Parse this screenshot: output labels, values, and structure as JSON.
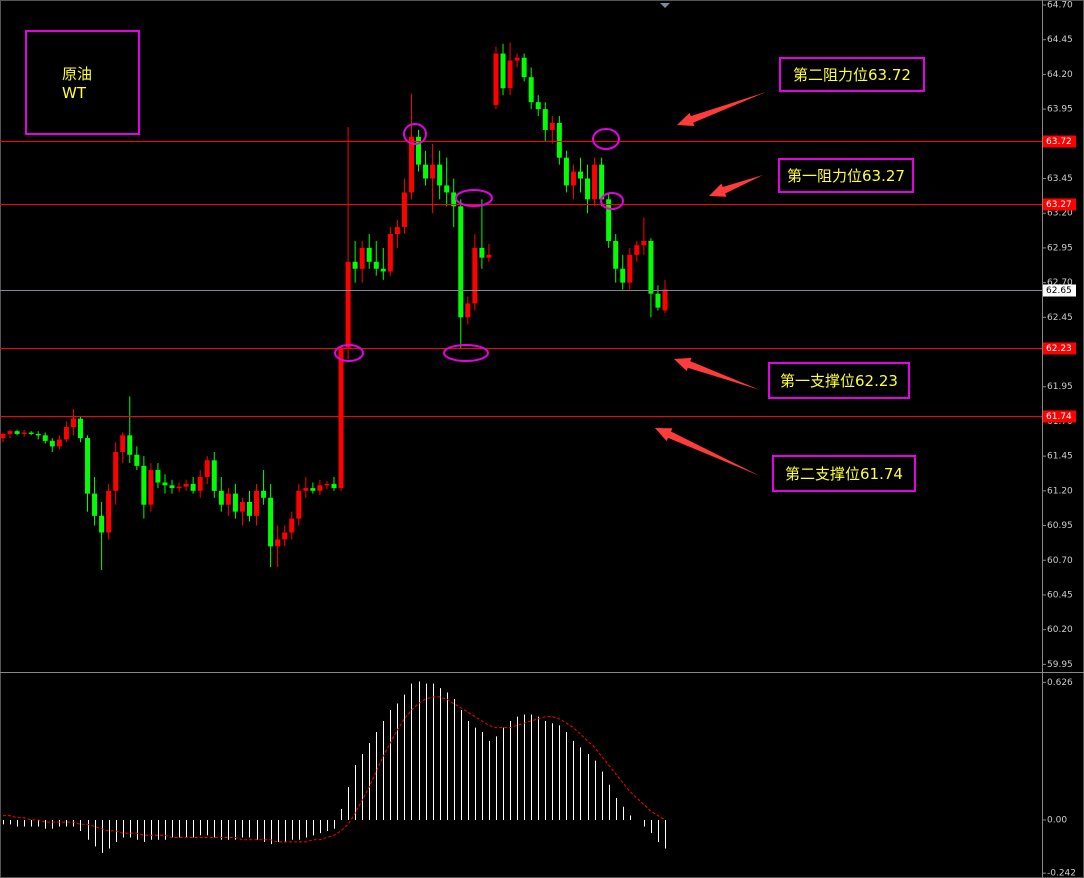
{
  "chart_data": [
    {
      "type": "candlestick",
      "annotations": [
        "原油",
        "WT",
        "第二阻力位63.72",
        "第一阻力位63.27",
        "第一支撑位62.23",
        "第二支撑位61.74"
      ],
      "up_color": "#ff0000",
      "down_color": "#00ff00",
      "ylim": [
        59.895,
        64.736
      ],
      "yticks": [
        {
          "value": 64.7,
          "label": "64.70"
        },
        64.45,
        {
          "value": 64.2,
          "label": "64.20"
        },
        63.95,
        63.45,
        {
          "value": 63.2,
          "label": "63.20"
        },
        62.95,
        {
          "value": 62.7,
          "label": "62.70"
        },
        62.45,
        61.95,
        {
          "value": 61.7,
          "label": "61.70"
        },
        61.45,
        {
          "value": 61.2,
          "label": "61.20"
        },
        60.95,
        {
          "value": 60.7,
          "label": "60.70"
        },
        60.45,
        {
          "value": 60.2,
          "label": "60.20"
        },
        59.95
      ],
      "levels": [
        {
          "value": 63.72,
          "color": "#ff0000"
        },
        {
          "value": 63.27,
          "color": "#ff0000"
        },
        {
          "value": 62.65,
          "color": "#ffffff"
        },
        {
          "value": 62.23,
          "color": "#ff0000"
        },
        {
          "value": 61.74,
          "color": "#ff0000"
        }
      ],
      "ohlc": [
        [
          61.58,
          61.62,
          61.55,
          61.61
        ],
        [
          61.61,
          61.64,
          61.58,
          61.63
        ],
        [
          61.63,
          61.64,
          61.6,
          61.61
        ],
        [
          61.61,
          61.64,
          61.59,
          61.62
        ],
        [
          61.62,
          61.63,
          61.6,
          61.61
        ],
        [
          61.61,
          61.63,
          61.57,
          61.6
        ],
        [
          61.6,
          61.62,
          61.54,
          61.56
        ],
        [
          61.56,
          61.58,
          61.48,
          61.52
        ],
        [
          61.52,
          61.6,
          61.5,
          61.57
        ],
        [
          61.57,
          61.7,
          61.55,
          61.66
        ],
        [
          61.66,
          61.79,
          61.6,
          61.72
        ],
        [
          61.72,
          61.74,
          61.55,
          61.58
        ],
        [
          61.58,
          61.6,
          61.05,
          61.18
        ],
        [
          61.18,
          61.3,
          60.95,
          61.02
        ],
        [
          61.02,
          61.12,
          60.63,
          60.9
        ],
        [
          60.9,
          61.25,
          60.85,
          61.2
        ],
        [
          61.2,
          61.55,
          61.1,
          61.48
        ],
        [
          61.48,
          61.62,
          61.4,
          61.6
        ],
        [
          61.6,
          61.88,
          61.4,
          61.46
        ],
        [
          61.46,
          61.52,
          61.35,
          61.38
        ],
        [
          61.38,
          61.45,
          61.0,
          61.1
        ],
        [
          61.1,
          61.4,
          61.05,
          61.35
        ],
        [
          61.35,
          61.4,
          61.22,
          61.26
        ],
        [
          61.26,
          61.32,
          61.18,
          61.24
        ],
        [
          61.24,
          61.28,
          61.18,
          61.22
        ],
        [
          61.22,
          61.26,
          61.19,
          61.23
        ],
        [
          61.23,
          61.28,
          61.2,
          61.25
        ],
        [
          61.25,
          61.3,
          61.18,
          61.2
        ],
        [
          61.2,
          61.35,
          61.15,
          61.3
        ],
        [
          61.3,
          61.45,
          61.25,
          61.42
        ],
        [
          61.42,
          61.48,
          61.15,
          61.2
        ],
        [
          61.2,
          61.3,
          61.05,
          61.1
        ],
        [
          61.1,
          61.22,
          61.02,
          61.18
        ],
        [
          61.18,
          61.25,
          61.0,
          61.05
        ],
        [
          61.05,
          61.15,
          60.95,
          61.12
        ],
        [
          61.12,
          61.2,
          60.98,
          61.02
        ],
        [
          61.02,
          61.25,
          60.95,
          61.2
        ],
        [
          61.2,
          61.35,
          61.1,
          61.15
        ],
        [
          61.15,
          61.25,
          60.65,
          60.8
        ],
        [
          60.8,
          60.95,
          60.65,
          60.85
        ],
        [
          60.85,
          60.95,
          60.8,
          60.9
        ],
        [
          60.9,
          61.05,
          60.85,
          61.0
        ],
        [
          61.0,
          61.25,
          60.95,
          61.2
        ],
        [
          61.2,
          61.3,
          61.15,
          61.22
        ],
        [
          61.22,
          61.26,
          61.18,
          61.2
        ],
        [
          61.2,
          61.28,
          61.17,
          61.24
        ],
        [
          61.24,
          61.27,
          61.21,
          61.25
        ],
        [
          61.25,
          61.3,
          61.2,
          61.22
        ],
        [
          61.22,
          62.25,
          61.2,
          62.23
        ],
        [
          62.23,
          63.82,
          62.15,
          62.85
        ],
        [
          62.85,
          63.0,
          62.7,
          62.8
        ],
        [
          62.8,
          63.0,
          62.7,
          62.95
        ],
        [
          62.95,
          63.05,
          62.8,
          62.85
        ],
        [
          62.85,
          63.0,
          62.75,
          62.8
        ],
        [
          62.8,
          62.95,
          62.72,
          62.78
        ],
        [
          62.78,
          63.1,
          62.75,
          63.05
        ],
        [
          63.05,
          63.15,
          62.95,
          63.1
        ],
        [
          63.1,
          63.45,
          63.05,
          63.35
        ],
        [
          63.35,
          64.06,
          63.3,
          63.75
        ],
        [
          63.75,
          63.8,
          63.5,
          63.55
        ],
        [
          63.55,
          63.65,
          63.4,
          63.45
        ],
        [
          63.45,
          63.7,
          63.2,
          63.55
        ],
        [
          63.55,
          63.65,
          63.3,
          63.4
        ],
        [
          63.4,
          63.6,
          63.25,
          63.35
        ],
        [
          63.35,
          63.45,
          63.1,
          63.25
        ],
        [
          63.25,
          63.3,
          62.23,
          62.45
        ],
        [
          62.45,
          62.6,
          62.4,
          62.55
        ],
        [
          62.55,
          63.05,
          62.5,
          62.95
        ],
        [
          62.95,
          63.3,
          62.8,
          62.88
        ],
        [
          62.88,
          62.98,
          62.85,
          62.9
        ],
        [
          63.98,
          64.4,
          63.95,
          64.35
        ],
        [
          64.35,
          64.42,
          64.05,
          64.1
        ],
        [
          64.1,
          64.43,
          64.05,
          64.3
        ],
        [
          64.3,
          64.35,
          64.25,
          64.32
        ],
        [
          64.32,
          64.35,
          64.15,
          64.18
        ],
        [
          64.18,
          64.25,
          63.95,
          64.0
        ],
        [
          64.0,
          64.05,
          63.9,
          63.95
        ],
        [
          63.95,
          64.0,
          63.72,
          63.8
        ],
        [
          63.8,
          63.9,
          63.7,
          63.85
        ],
        [
          63.85,
          63.9,
          63.55,
          63.6
        ],
        [
          63.6,
          63.65,
          63.35,
          63.4
        ],
        [
          63.4,
          63.55,
          63.3,
          63.5
        ],
        [
          63.5,
          63.6,
          63.35,
          63.45
        ],
        [
          63.45,
          63.55,
          63.2,
          63.3
        ],
        [
          63.3,
          63.6,
          63.25,
          63.55
        ],
        [
          63.55,
          63.6,
          63.25,
          63.3
        ],
        [
          63.3,
          63.35,
          62.95,
          63.0
        ],
        [
          63.0,
          63.05,
          62.7,
          62.8
        ],
        [
          62.8,
          62.9,
          62.65,
          62.7
        ],
        [
          62.7,
          62.95,
          62.65,
          62.9
        ],
        [
          62.9,
          63.0,
          62.85,
          62.97
        ],
        [
          62.97,
          63.17,
          62.9,
          63.0
        ],
        [
          63.0,
          63.02,
          62.45,
          62.62
        ],
        [
          62.62,
          62.68,
          62.5,
          62.52
        ],
        [
          62.5,
          62.72,
          62.48,
          62.65
        ]
      ]
    },
    {
      "type": "macd",
      "histogram_color": "#ffffff",
      "signal_color": "#ff0000",
      "ylim": [
        -0.255,
        0.664
      ],
      "yticks": [
        0.626,
        {
          "value": 0,
          "label": "0.00"
        },
        -0.242
      ],
      "histogram": [
        -0.02,
        -0.02,
        -0.03,
        -0.03,
        -0.03,
        -0.03,
        -0.04,
        -0.04,
        -0.03,
        -0.03,
        -0.03,
        -0.05,
        -0.09,
        -0.12,
        -0.15,
        -0.13,
        -0.1,
        -0.08,
        -0.08,
        -0.09,
        -0.1,
        -0.09,
        -0.09,
        -0.09,
        -0.08,
        -0.08,
        -0.08,
        -0.08,
        -0.07,
        -0.07,
        -0.08,
        -0.09,
        -0.09,
        -0.09,
        -0.08,
        -0.08,
        -0.09,
        -0.1,
        -0.11,
        -0.1,
        -0.1,
        -0.09,
        -0.09,
        -0.08,
        -0.07,
        -0.06,
        -0.05,
        -0.04,
        0.05,
        0.15,
        0.25,
        0.3,
        0.35,
        0.4,
        0.45,
        0.5,
        0.53,
        0.57,
        0.62,
        0.63,
        0.62,
        0.62,
        0.6,
        0.58,
        0.55,
        0.5,
        0.45,
        0.42,
        0.4,
        0.36,
        0.38,
        0.42,
        0.45,
        0.47,
        0.48,
        0.48,
        0.47,
        0.45,
        0.44,
        0.43,
        0.4,
        0.36,
        0.33,
        0.3,
        0.27,
        0.22,
        0.16,
        0.1,
        0.06,
        0.02,
        0.0,
        -0.03,
        -0.06,
        -0.1,
        -0.13
      ],
      "signal": [
        0.02,
        0.02,
        0.01,
        0.01,
        0.0,
        0.0,
        -0.01,
        -0.01,
        -0.01,
        -0.01,
        -0.01,
        -0.02,
        -0.02,
        -0.03,
        -0.04,
        -0.05,
        -0.05,
        -0.06,
        -0.06,
        -0.06,
        -0.07,
        -0.07,
        -0.07,
        -0.07,
        -0.08,
        -0.08,
        -0.08,
        -0.08,
        -0.08,
        -0.08,
        -0.08,
        -0.08,
        -0.08,
        -0.08,
        -0.09,
        -0.09,
        -0.09,
        -0.09,
        -0.09,
        -0.1,
        -0.1,
        -0.1,
        -0.1,
        -0.1,
        -0.09,
        -0.09,
        -0.08,
        -0.07,
        -0.05,
        -0.02,
        0.03,
        0.09,
        0.15,
        0.22,
        0.29,
        0.35,
        0.41,
        0.46,
        0.5,
        0.53,
        0.55,
        0.56,
        0.56,
        0.55,
        0.53,
        0.51,
        0.49,
        0.47,
        0.45,
        0.43,
        0.42,
        0.42,
        0.42,
        0.43,
        0.44,
        0.45,
        0.46,
        0.47,
        0.47,
        0.46,
        0.44,
        0.42,
        0.39,
        0.36,
        0.33,
        0.29,
        0.25,
        0.21,
        0.17,
        0.13,
        0.1,
        0.07,
        0.04,
        0.02,
        0.0
      ]
    }
  ]
}
